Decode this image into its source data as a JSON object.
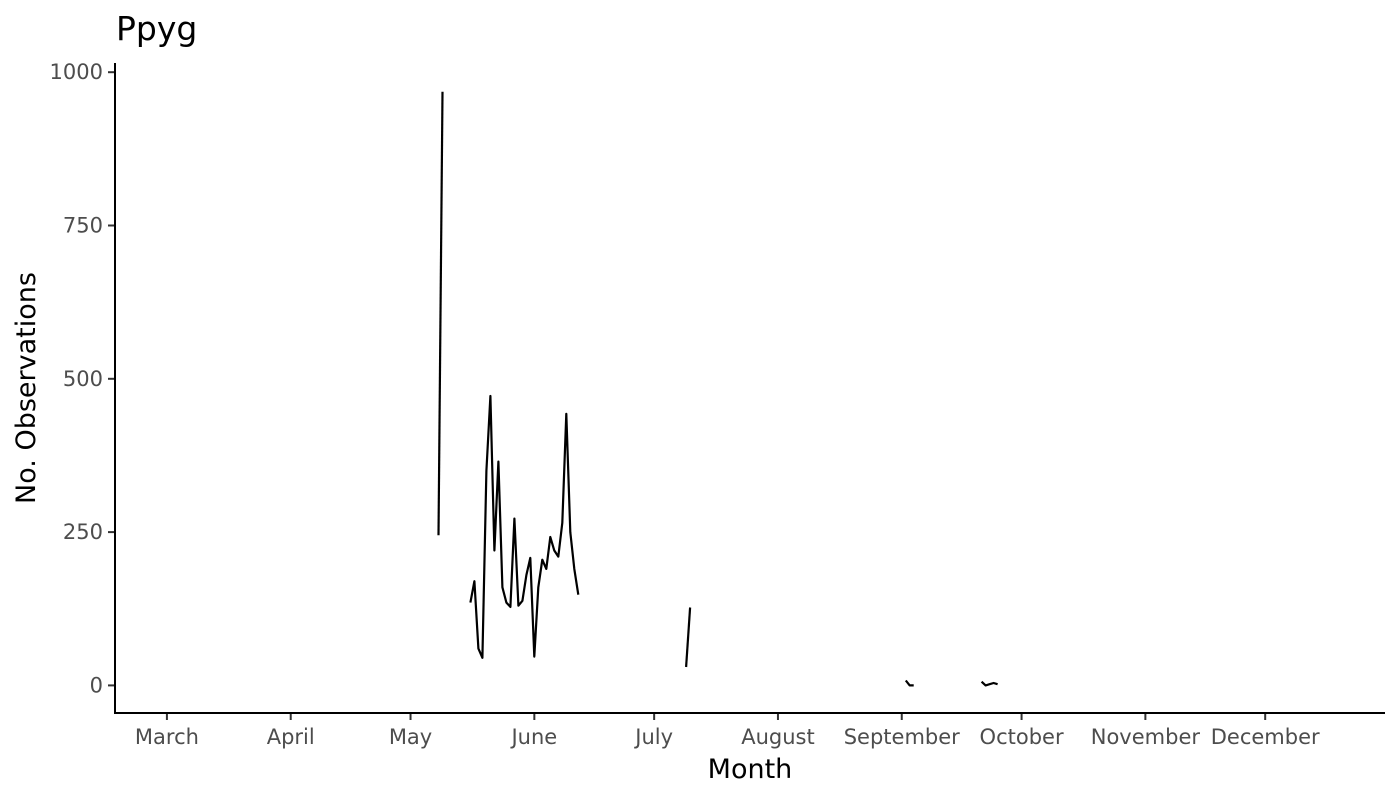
{
  "chart_data": {
    "type": "line",
    "title": "Ppyg",
    "xlabel": "Month",
    "ylabel": "No. Observations",
    "x_scale": "date",
    "xlim": [
      "2020-02-17",
      "2020-12-31"
    ],
    "ylim": [
      -45,
      1015
    ],
    "x_ticks": [
      {
        "label": "March",
        "date": "2020-03-01"
      },
      {
        "label": "April",
        "date": "2020-04-01"
      },
      {
        "label": "May",
        "date": "2020-05-01"
      },
      {
        "label": "June",
        "date": "2020-06-01"
      },
      {
        "label": "July",
        "date": "2020-07-01"
      },
      {
        "label": "August",
        "date": "2020-08-01"
      },
      {
        "label": "September",
        "date": "2020-09-01"
      },
      {
        "label": "October",
        "date": "2020-10-01"
      },
      {
        "label": "November",
        "date": "2020-11-01"
      },
      {
        "label": "December",
        "date": "2020-12-01"
      }
    ],
    "y_ticks": [
      0,
      250,
      500,
      750,
      1000
    ],
    "grid": false,
    "legend": "none",
    "line_color": "#000000",
    "segments": [
      [
        {
          "x": "2020-05-08",
          "y": 245
        },
        {
          "x": "2020-05-09",
          "y": 968
        }
      ],
      [
        {
          "x": "2020-05-16",
          "y": 135
        },
        {
          "x": "2020-05-17",
          "y": 170
        },
        {
          "x": "2020-05-18",
          "y": 60
        },
        {
          "x": "2020-05-19",
          "y": 45
        },
        {
          "x": "2020-05-20",
          "y": 350
        },
        {
          "x": "2020-05-21",
          "y": 472
        },
        {
          "x": "2020-05-22",
          "y": 220
        },
        {
          "x": "2020-05-23",
          "y": 365
        },
        {
          "x": "2020-05-24",
          "y": 160
        },
        {
          "x": "2020-05-25",
          "y": 135
        },
        {
          "x": "2020-05-26",
          "y": 128
        },
        {
          "x": "2020-05-27",
          "y": 272
        },
        {
          "x": "2020-05-28",
          "y": 130
        },
        {
          "x": "2020-05-29",
          "y": 138
        },
        {
          "x": "2020-05-30",
          "y": 180
        },
        {
          "x": "2020-05-31",
          "y": 208
        },
        {
          "x": "2020-06-01",
          "y": 47
        },
        {
          "x": "2020-06-02",
          "y": 160
        },
        {
          "x": "2020-06-03",
          "y": 205
        },
        {
          "x": "2020-06-04",
          "y": 190
        },
        {
          "x": "2020-06-05",
          "y": 242
        },
        {
          "x": "2020-06-06",
          "y": 220
        },
        {
          "x": "2020-06-07",
          "y": 210
        },
        {
          "x": "2020-06-08",
          "y": 265
        },
        {
          "x": "2020-06-09",
          "y": 443
        },
        {
          "x": "2020-06-10",
          "y": 250
        },
        {
          "x": "2020-06-11",
          "y": 190
        },
        {
          "x": "2020-06-12",
          "y": 148
        }
      ],
      [
        {
          "x": "2020-07-09",
          "y": 30
        },
        {
          "x": "2020-07-10",
          "y": 127
        }
      ],
      [
        {
          "x": "2020-09-02",
          "y": 8
        },
        {
          "x": "2020-09-03",
          "y": 0
        },
        {
          "x": "2020-09-04",
          "y": 0
        }
      ],
      [
        {
          "x": "2020-09-21",
          "y": 6
        },
        {
          "x": "2020-09-22",
          "y": 0
        },
        {
          "x": "2020-09-23",
          "y": 2
        },
        {
          "x": "2020-09-24",
          "y": 4
        },
        {
          "x": "2020-09-25",
          "y": 2
        }
      ]
    ]
  }
}
